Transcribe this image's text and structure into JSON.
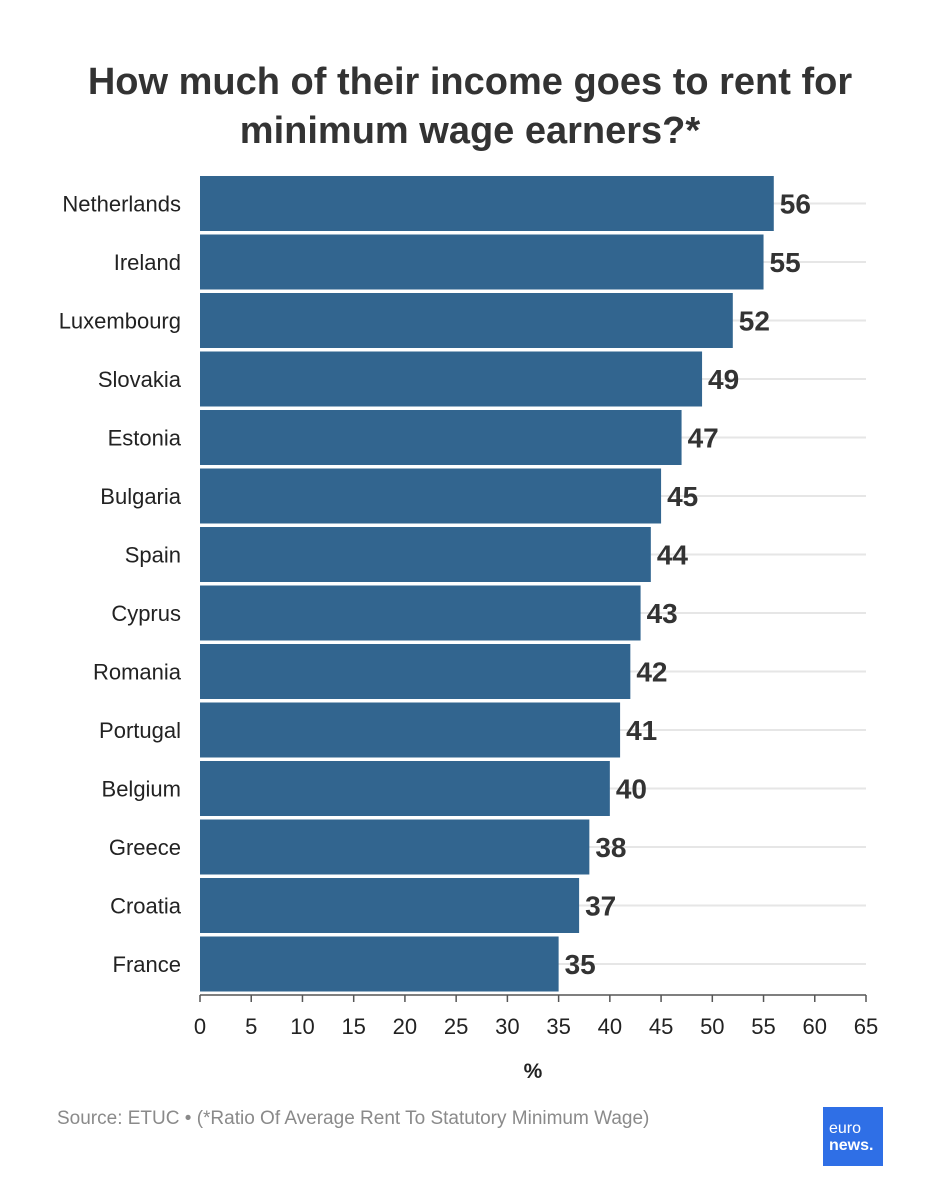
{
  "chart_data": {
    "type": "bar",
    "orientation": "horizontal",
    "title": "How much of their income goes to rent for minimum wage earners?*",
    "categories": [
      "Netherlands",
      "Ireland",
      "Luxembourg",
      "Slovakia",
      "Estonia",
      "Bulgaria",
      "Spain",
      "Cyprus",
      "Romania",
      "Portugal",
      "Belgium",
      "Greece",
      "Croatia",
      "France"
    ],
    "values": [
      56,
      55,
      52,
      49,
      47,
      45,
      44,
      43,
      42,
      41,
      40,
      38,
      37,
      35
    ],
    "xlabel": "%",
    "ylabel": "",
    "xlim": [
      0,
      65
    ],
    "xticks": [
      0,
      5,
      10,
      15,
      20,
      25,
      30,
      35,
      40,
      45,
      50,
      55,
      60,
      65
    ],
    "grid": true,
    "data_labels": true,
    "bar_color": "#32658f"
  },
  "footer": {
    "source": "Source: ETUC • (*Ratio Of Average Rent To Statutory Minimum Wage)"
  },
  "logo": {
    "line1": "euro",
    "line2": "news."
  }
}
